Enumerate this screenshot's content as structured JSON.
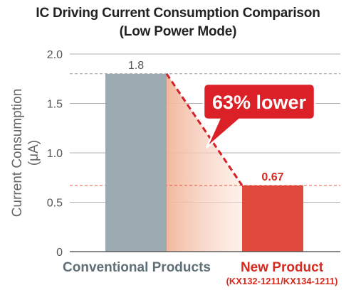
{
  "chart_data": {
    "type": "bar",
    "title": "IC Driving Current Consumption Comparison",
    "subtitle": "(Low Power Mode)",
    "ylabel_line1": "Current Consumption",
    "ylabel_line2": "(μA)",
    "ylim": [
      0,
      2.0
    ],
    "yticks": [
      "0",
      "0.5",
      "1.0",
      "1.5",
      "2.0"
    ],
    "categories": [
      {
        "label": "Conventional Products",
        "sublabel": "",
        "value": 1.8,
        "value_label": "1.8",
        "color": "#9aaab0",
        "label_color": "#5f6f76"
      },
      {
        "label": "New Product",
        "sublabel": "(KX132-1211/KX134-1211)",
        "value": 0.67,
        "value_label": "0.67",
        "color": "#e04a3c",
        "label_color": "#d42a1f"
      }
    ],
    "annotation": {
      "text": "63% lower",
      "bg_color": "#dc2027",
      "text_color": "#ffffff"
    },
    "reference_line_colors": [
      "#999999",
      "#e05a4a"
    ],
    "grid": true
  }
}
